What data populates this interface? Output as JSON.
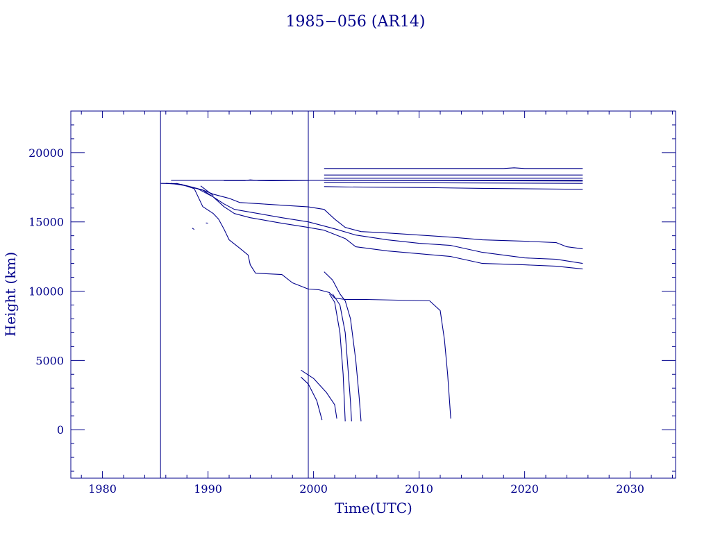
{
  "colors": {
    "ink": "#00008B"
  },
  "chart_data": {
    "type": "line",
    "title": "1985−056 (AR14)",
    "xlabel": "Time(UTC)",
    "ylabel": "Height (km)",
    "xlim": [
      1977,
      2034.3
    ],
    "ylim": [
      -3500,
      23000
    ],
    "xticks": [
      1980,
      1990,
      2000,
      2010,
      2020,
      2030
    ],
    "yticks": [
      0,
      5000,
      10000,
      15000,
      20000
    ],
    "x_minor_step": 2,
    "y_minor_step": 1000,
    "grid": false,
    "vertical_markers": [
      1985.5,
      1999.5
    ],
    "series": [
      {
        "values": [
          [
            1986.5,
            18000
          ],
          [
            1999.5,
            18000
          ],
          [
            2025.5,
            18000
          ]
        ]
      },
      {
        "values": [
          [
            1991.5,
            17980
          ],
          [
            1993.5,
            17980
          ],
          [
            1994.0,
            18030
          ],
          [
            1994.8,
            17980
          ],
          [
            1996.0,
            17970
          ],
          [
            1999.5,
            17990
          ]
        ]
      },
      {
        "values": [
          [
            2001,
            18850
          ],
          [
            2018,
            18850
          ],
          [
            2019,
            18900
          ],
          [
            2020,
            18850
          ],
          [
            2025.5,
            18850
          ]
        ]
      },
      {
        "values": [
          [
            2001,
            18380
          ],
          [
            2025.5,
            18380
          ]
        ]
      },
      {
        "values": [
          [
            2001,
            18150
          ],
          [
            2025.5,
            18150
          ]
        ]
      },
      {
        "values": [
          [
            2001,
            18000
          ],
          [
            2025.5,
            17950
          ]
        ]
      },
      {
        "values": [
          [
            2001,
            17850
          ],
          [
            2025.5,
            17780
          ]
        ]
      },
      {
        "values": [
          [
            2001,
            17550
          ],
          [
            2003,
            17520
          ],
          [
            2010,
            17480
          ],
          [
            2016,
            17420
          ],
          [
            2025.5,
            17350
          ]
        ]
      },
      {
        "values": [
          [
            1985.5,
            17780
          ],
          [
            1987,
            17760
          ],
          [
            1988,
            17600
          ],
          [
            1989.5,
            17300
          ],
          [
            1990.5,
            17000
          ],
          [
            1992,
            16700
          ],
          [
            1993,
            16400
          ],
          [
            1995,
            16300
          ],
          [
            1997,
            16200
          ],
          [
            1999.5,
            16080
          ],
          [
            2001,
            15900
          ],
          [
            2002,
            15200
          ],
          [
            2003,
            14600
          ],
          [
            2004.5,
            14300
          ],
          [
            2007,
            14200
          ],
          [
            2010,
            14050
          ],
          [
            2013,
            13900
          ],
          [
            2016,
            13700
          ],
          [
            2020,
            13600
          ],
          [
            2023,
            13500
          ],
          [
            2024,
            13200
          ],
          [
            2025.5,
            13050
          ]
        ]
      },
      {
        "values": [
          [
            1986.5,
            17780
          ],
          [
            1988,
            17600
          ],
          [
            1989.5,
            17300
          ],
          [
            1990.5,
            16800
          ],
          [
            1991.5,
            16300
          ],
          [
            1992.5,
            15900
          ],
          [
            1994,
            15700
          ],
          [
            1997,
            15300
          ],
          [
            1999.5,
            15000
          ],
          [
            2002,
            14500
          ],
          [
            2004,
            14050
          ],
          [
            2007,
            13700
          ],
          [
            2010,
            13450
          ],
          [
            2013,
            13300
          ],
          [
            2016,
            12800
          ],
          [
            2020,
            12400
          ],
          [
            2023,
            12300
          ],
          [
            2025.5,
            12000
          ]
        ]
      },
      {
        "values": [
          [
            1987,
            17780
          ],
          [
            1989,
            17400
          ],
          [
            1990.5,
            16800
          ],
          [
            1991.5,
            16100
          ],
          [
            1992.5,
            15600
          ],
          [
            1994,
            15300
          ],
          [
            1997,
            14900
          ],
          [
            1999.5,
            14600
          ],
          [
            2001,
            14400
          ],
          [
            2003,
            13800
          ],
          [
            2004,
            13200
          ],
          [
            2007,
            12900
          ],
          [
            2010,
            12700
          ],
          [
            2013,
            12500
          ],
          [
            2016,
            12000
          ],
          [
            2020,
            11900
          ],
          [
            2023,
            11800
          ],
          [
            2025.5,
            11600
          ]
        ]
      },
      {
        "values": [
          [
            1989.3,
            17600
          ],
          [
            1990.5,
            16900
          ]
        ]
      },
      {
        "values": [
          [
            1986,
            17780
          ],
          [
            1987.5,
            17700
          ],
          [
            1988.7,
            17400
          ],
          [
            1989.5,
            16100
          ],
          [
            1990.5,
            15600
          ],
          [
            1991,
            15200
          ],
          [
            1991.5,
            14500
          ],
          [
            1992,
            13700
          ],
          [
            1993,
            13100
          ],
          [
            1993.8,
            12600
          ],
          [
            1994,
            11900
          ],
          [
            1994.5,
            11300
          ],
          [
            1997,
            11200
          ],
          [
            1998,
            10600
          ],
          [
            1999.5,
            10150
          ],
          [
            2000.5,
            10100
          ],
          [
            2001.5,
            9900
          ],
          [
            2002,
            9500
          ],
          [
            2003,
            9400
          ],
          [
            2005,
            9400
          ],
          [
            2008,
            9350
          ],
          [
            2011,
            9300
          ],
          [
            2012,
            8600
          ],
          [
            2012.4,
            6500
          ],
          [
            2012.7,
            4000
          ],
          [
            2013,
            800
          ]
        ]
      },
      {
        "values": [
          [
            2001,
            11400
          ],
          [
            2001.8,
            10800
          ],
          [
            2002.5,
            9800
          ],
          [
            2003,
            9300
          ],
          [
            2003.5,
            8000
          ],
          [
            2004,
            5000
          ],
          [
            2004.3,
            2500
          ],
          [
            2004.5,
            600
          ]
        ]
      },
      {
        "values": [
          [
            2001.8,
            9800
          ],
          [
            2002.5,
            9000
          ],
          [
            2003,
            7000
          ],
          [
            2003.3,
            4000
          ],
          [
            2003.5,
            2000
          ],
          [
            2003.6,
            600
          ]
        ]
      },
      {
        "values": [
          [
            2001.5,
            9800
          ],
          [
            2002,
            9200
          ],
          [
            2002.5,
            7000
          ],
          [
            2002.8,
            4000
          ],
          [
            2003,
            600
          ]
        ]
      },
      {
        "values": [
          [
            1998.8,
            4300
          ],
          [
            2000,
            3700
          ],
          [
            2001.2,
            2700
          ],
          [
            2002,
            1800
          ],
          [
            2002.2,
            800
          ]
        ]
      },
      {
        "values": [
          [
            1998.8,
            3800
          ],
          [
            1999.5,
            3300
          ],
          [
            2000.3,
            2100
          ],
          [
            2000.8,
            700
          ]
        ]
      },
      {
        "values": [
          [
            1988.5,
            14550
          ],
          [
            1988.7,
            14450
          ]
        ]
      },
      {
        "values": [
          [
            1989.8,
            14920
          ],
          [
            1990,
            14910
          ]
        ]
      }
    ]
  }
}
